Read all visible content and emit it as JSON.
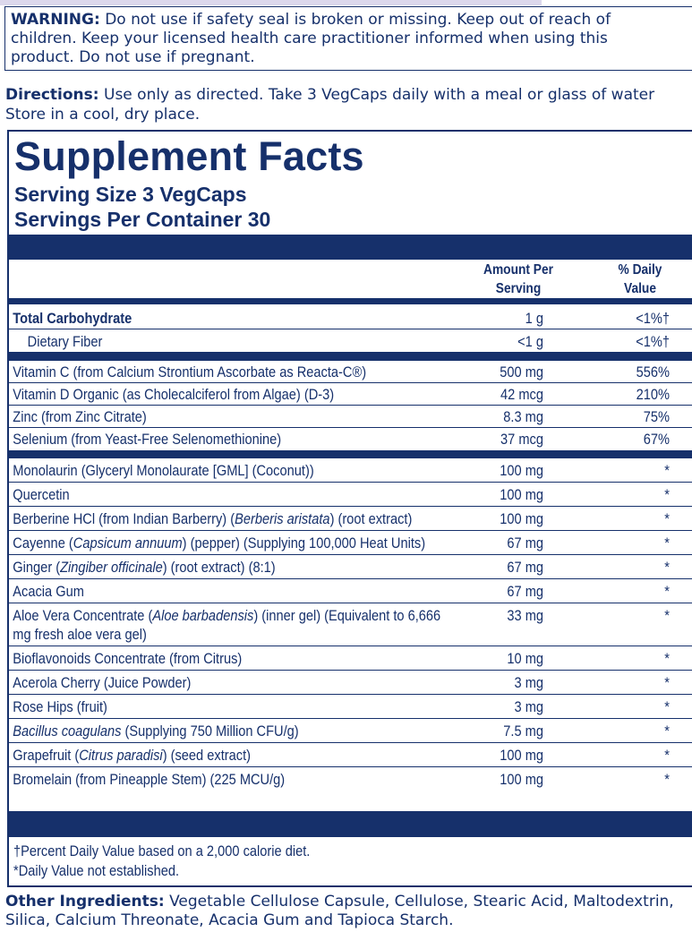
{
  "warning": {
    "label": "WARNING:",
    "text": "Do not use if safety seal is broken or missing. Keep out of reach of children. Keep your licensed health care practitioner informed when using this product. Do not use if pregnant."
  },
  "directions": {
    "label": "Directions:",
    "lines": [
      "Use only as directed. Take 3 VegCaps daily with a meal or glass of water",
      "Store in a cool, dry place."
    ]
  },
  "supplement_facts": {
    "title": "Supplement Facts",
    "serving_size": "Serving Size 3 VegCaps",
    "servings_per_container": "Servings Per Container 30",
    "header": {
      "amount": "Amount Per Serving",
      "dv": "% Daily Value"
    },
    "sections": [
      [
        {
          "name": [
            "Total Carbohydrate"
          ],
          "amount": "1 g",
          "dv": "<1%†",
          "bold": true
        },
        {
          "name": [
            "Dietary Fiber"
          ],
          "amount": "<1 g",
          "dv": "<1%†",
          "indent": true
        }
      ],
      [
        {
          "name": [
            "Vitamin C (from Calcium Strontium Ascorbate as Reacta-C®)"
          ],
          "amount": "500 mg",
          "dv": "556%"
        },
        {
          "name": [
            "Vitamin D Organic (as Cholecalciferol from Algae) (D-3)"
          ],
          "amount": "42 mcg",
          "dv": "210%"
        },
        {
          "name": [
            "Zinc (from Zinc Citrate)"
          ],
          "amount": "8.3 mg",
          "dv": "75%"
        },
        {
          "name": [
            "Selenium (from Yeast-Free Selenomethionine)"
          ],
          "amount": "37 mcg",
          "dv": "67%"
        }
      ],
      [
        {
          "name": [
            "Monolaurin (Glyceryl Monolaurate [GML] (Coconut))"
          ],
          "amount": "100 mg",
          "dv": "*"
        },
        {
          "name": [
            "Quercetin"
          ],
          "amount": "100 mg",
          "dv": "*"
        },
        {
          "name": [
            "Berberine HCl (from Indian Barberry) (",
            "Berberis aristata",
            ") (root extract)"
          ],
          "italic": [
            1
          ],
          "amount": "100 mg",
          "dv": "*"
        },
        {
          "name": [
            "Cayenne (",
            "Capsicum annuum",
            ") (pepper) (Supplying 100,000 Heat Units)"
          ],
          "italic": [
            1
          ],
          "amount": "67 mg",
          "dv": "*"
        },
        {
          "name": [
            "Ginger (",
            "Zingiber officinale",
            ") (root extract) (8:1)"
          ],
          "italic": [
            1
          ],
          "amount": "67 mg",
          "dv": "*"
        },
        {
          "name": [
            "Acacia Gum"
          ],
          "amount": "67 mg",
          "dv": "*"
        },
        {
          "name": [
            "Aloe Vera Concentrate (",
            "Aloe barbadensis",
            ") (inner gel) (Equivalent to 6,666 mg fresh aloe vera gel)"
          ],
          "italic": [
            1
          ],
          "amount": "33 mg",
          "dv": "*"
        },
        {
          "name": [
            "Bioflavonoids Concentrate (from Citrus)"
          ],
          "amount": "10 mg",
          "dv": "*"
        },
        {
          "name": [
            "Acerola Cherry (Juice Powder)"
          ],
          "amount": "3 mg",
          "dv": "*"
        },
        {
          "name": [
            "Rose Hips (fruit)"
          ],
          "amount": "3 mg",
          "dv": "*"
        },
        {
          "name": [
            "Bacillus coagulans",
            " (Supplying 750 Million CFU/g)"
          ],
          "italic": [
            0
          ],
          "amount": "7.5 mg",
          "dv": "*"
        },
        {
          "name": [
            "Grapefruit (",
            "Citrus paradisi",
            ") (seed extract)"
          ],
          "italic": [
            1
          ],
          "amount": "100 mg",
          "dv": "*"
        },
        {
          "name": [
            "Bromelain (from Pineapple Stem) (225 MCU/g)"
          ],
          "amount": "100 mg",
          "dv": "*"
        }
      ]
    ],
    "footnotes": [
      "†Percent Daily Value based on a 2,000 calorie diet.",
      "*Daily Value not established."
    ]
  },
  "other_ingredients": {
    "label": "Other Ingredients:",
    "text": "Vegetable Cellulose Capsule, Cellulose, Stearic Acid, Maltodextrin, Silica, Calcium Threonate, Acacia Gum and Tapioca Starch."
  }
}
